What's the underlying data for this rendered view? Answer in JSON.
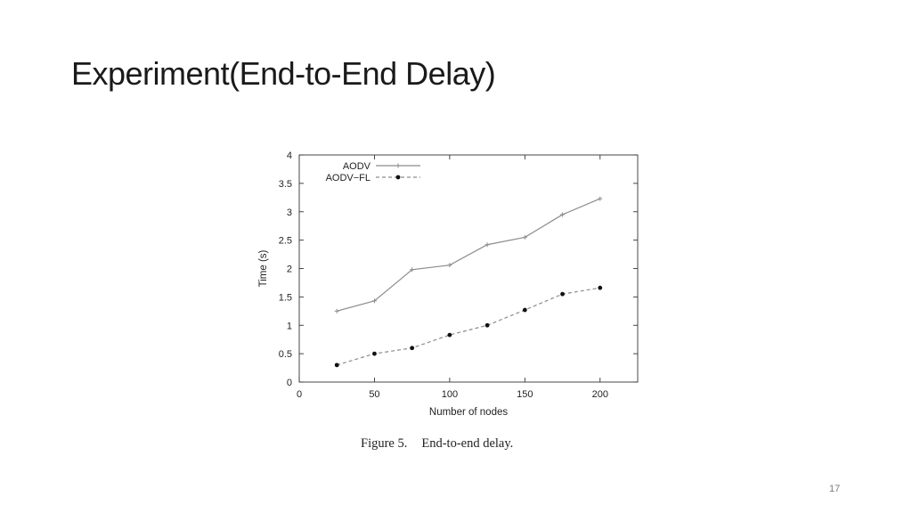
{
  "slide": {
    "title": "Experiment(End-to-End Delay)",
    "page_number": "17"
  },
  "figure": {
    "caption_label": "Figure 5.",
    "caption_text": "End-to-end delay."
  },
  "chart_data": {
    "type": "line",
    "title": "",
    "xlabel": "Number of nodes",
    "ylabel": "Time (s)",
    "xlim": [
      0,
      225
    ],
    "ylim": [
      0,
      4
    ],
    "x_ticks": [
      0,
      50,
      100,
      150,
      200
    ],
    "y_ticks": [
      0,
      0.5,
      1,
      1.5,
      2,
      2.5,
      3,
      3.5,
      4
    ],
    "x_tick_labels": [
      "0",
      "50",
      "100",
      "150",
      "200"
    ],
    "y_tick_labels": [
      "0",
      "0.5",
      "1",
      "1.5",
      "2",
      "2.5",
      "3",
      "3.5",
      "4"
    ],
    "grid": false,
    "legend_position": "top-left",
    "x": [
      25,
      50,
      75,
      100,
      125,
      150,
      175,
      200
    ],
    "series": [
      {
        "name": "AODV",
        "values": [
          1.25,
          1.43,
          1.98,
          2.06,
          2.42,
          2.55,
          2.95,
          3.23
        ],
        "color": "#8c8c8c",
        "line_style": "solid",
        "marker": "plus"
      },
      {
        "name": "AODV−FL",
        "values": [
          0.3,
          0.5,
          0.6,
          0.83,
          1.0,
          1.27,
          1.55,
          1.66
        ],
        "color": "#8c8c8c",
        "marker_color": "#111111",
        "line_style": "dashed",
        "marker": "dot"
      }
    ]
  }
}
